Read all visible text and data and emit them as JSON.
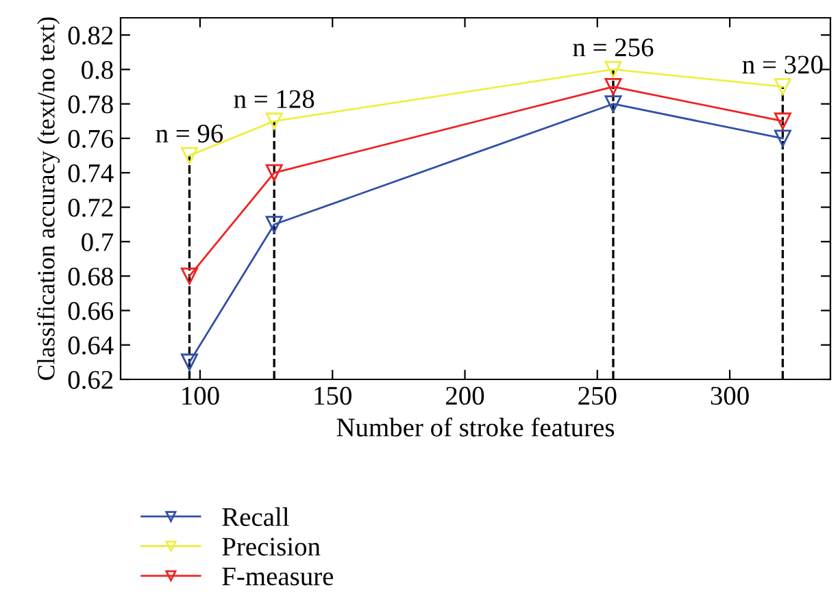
{
  "chart_data": {
    "type": "line",
    "xlabel": "Number of stroke features",
    "ylabel": "Classification accuracy (text/no text)",
    "x": [
      96,
      128,
      256,
      320
    ],
    "series": [
      {
        "name": "Recall",
        "color": "#2f4fa8",
        "values": [
          0.63,
          0.71,
          0.78,
          0.76
        ]
      },
      {
        "name": "Precision",
        "color": "#eeee44",
        "values": [
          0.75,
          0.77,
          0.8,
          0.79
        ]
      },
      {
        "name": "F-measure",
        "color": "#ee2222",
        "values": [
          0.68,
          0.74,
          0.79,
          0.77
        ]
      },
      {
        "type": "line",
        "color": "#000000",
        "line_style": "dashed",
        "marker": "none",
        "x": [
          96,
          96
        ],
        "values": [
          0.62,
          0.75
        ]
      },
      {
        "type": "line",
        "color": "#000000",
        "line_style": "dashed",
        "marker": "none",
        "x": [
          128,
          128
        ],
        "values": [
          0.62,
          0.77
        ]
      },
      {
        "type": "line",
        "color": "#000000",
        "line_style": "dashed",
        "marker": "none",
        "x": [
          256,
          256
        ],
        "values": [
          0.62,
          0.8
        ]
      },
      {
        "type": "line",
        "color": "#000000",
        "line_style": "dashed",
        "marker": "none",
        "x": [
          320,
          320
        ],
        "values": [
          0.62,
          0.79
        ]
      }
    ],
    "annotations": [
      {
        "text": "n = 96",
        "x": 96,
        "y": 0.75
      },
      {
        "text": "n = 128",
        "x": 128,
        "y": 0.77
      },
      {
        "text": "n = 256",
        "x": 256,
        "y": 0.8
      },
      {
        "text": "n = 320",
        "x": 320,
        "y": 0.79
      }
    ],
    "xlim": [
      70,
      338
    ],
    "xticks": [
      100,
      150,
      200,
      250,
      300
    ],
    "ylim": [
      0.62,
      0.83
    ],
    "yticks": [
      {
        "value": 0.62,
        "label": "0.62"
      },
      {
        "value": 0.64,
        "label": "0.64"
      },
      {
        "value": 0.66,
        "label": "0.66"
      },
      {
        "value": 0.68,
        "label": "0.68"
      },
      {
        "value": 0.7,
        "label": "0.7"
      },
      {
        "value": 0.72,
        "label": "0.72"
      },
      {
        "value": 0.74,
        "label": "0.74"
      },
      {
        "value": 0.76,
        "label": "0.76"
      },
      {
        "value": 0.78,
        "label": "0.78"
      },
      {
        "value": 0.8,
        "label": "0.8"
      },
      {
        "value": 0.82,
        "label": "0.82"
      }
    ],
    "marker": "triangle",
    "line_style": "solid",
    "grid": false,
    "legend": "bottom"
  }
}
